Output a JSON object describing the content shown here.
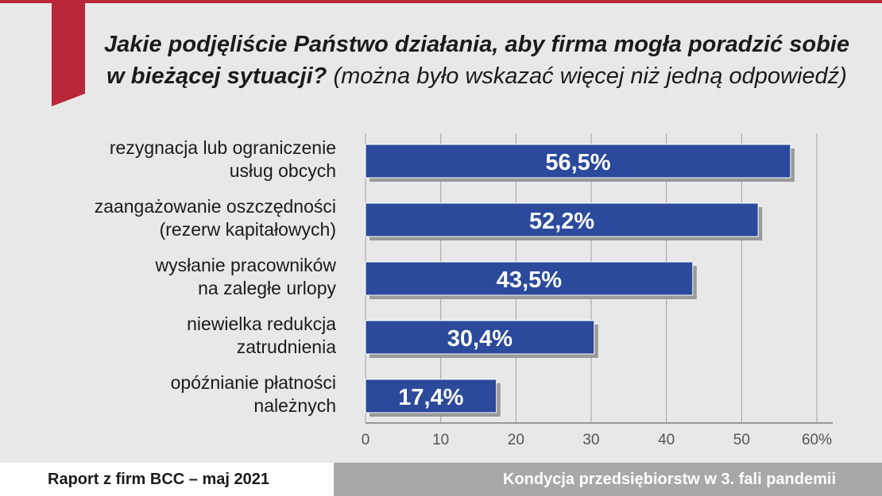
{
  "title": {
    "main": "Jakie podjęliście Państwo działania, aby firma mogła poradzić sobie w bieżącej sytuacji?",
    "note": "(można było wskazać więcej niż jedną odpowiedź)"
  },
  "colors": {
    "bar": "#2b4a9b",
    "accent": "#b8283a",
    "grid": "#a0a0a0"
  },
  "chart_data": {
    "type": "bar",
    "orientation": "horizontal",
    "categories": [
      [
        "rezygnacja lub ograniczenie",
        "usług obcych"
      ],
      [
        "zaangażowanie oszczędności",
        "(rezerw kapitałowych)"
      ],
      [
        "wysłanie pracowników",
        "na zaległe urlopy"
      ],
      [
        "niewielka redukcja",
        "zatrudnienia"
      ],
      [
        "opóźnianie płatności",
        "należnych"
      ]
    ],
    "values": [
      56.5,
      52.2,
      43.5,
      30.4,
      17.4
    ],
    "value_labels": [
      "56,5%",
      "52,2%",
      "43,5%",
      "30,4%",
      "17,4%"
    ],
    "xlim": [
      0,
      60
    ],
    "ticks": [
      "0",
      "10",
      "20",
      "30",
      "40",
      "50",
      "60%"
    ],
    "grid": true
  },
  "footer": {
    "left": "Raport z firm BCC – maj 2021",
    "right": "Kondycja przedsiębiorstw w 3. fali pandemii"
  }
}
